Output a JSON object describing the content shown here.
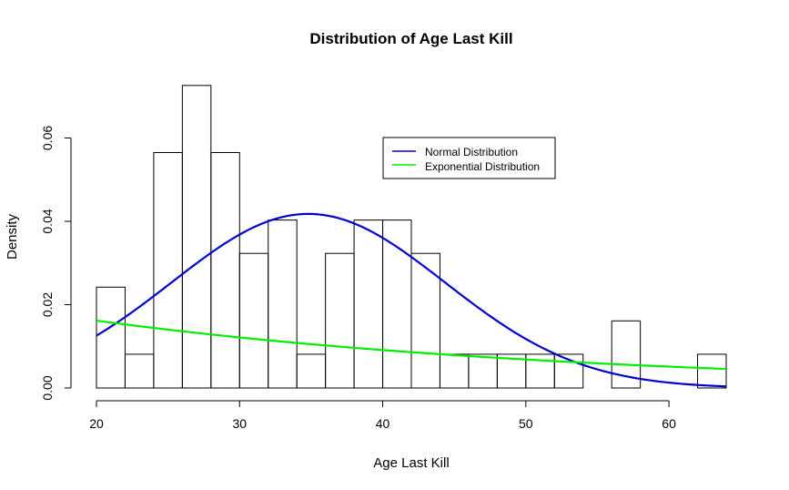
{
  "chart_data": {
    "type": "histogram",
    "title": "Distribution of Age Last Kill",
    "xlabel": "Age Last Kill",
    "ylabel": "Density",
    "xlim": [
      20,
      64
    ],
    "ylim": [
      0,
      0.073
    ],
    "x_ticks": [
      "20",
      "30",
      "40",
      "50",
      "60"
    ],
    "y_ticks": [
      "0.00",
      "0.02",
      "0.04",
      "0.06"
    ],
    "bin_width": 2,
    "bins": [
      {
        "start": 20,
        "end": 22,
        "density": 0.0242
      },
      {
        "start": 22,
        "end": 24,
        "density": 0.0081
      },
      {
        "start": 24,
        "end": 26,
        "density": 0.0565
      },
      {
        "start": 26,
        "end": 28,
        "density": 0.0726
      },
      {
        "start": 28,
        "end": 30,
        "density": 0.0565
      },
      {
        "start": 30,
        "end": 32,
        "density": 0.0323
      },
      {
        "start": 32,
        "end": 34,
        "density": 0.0403
      },
      {
        "start": 34,
        "end": 36,
        "density": 0.0081
      },
      {
        "start": 36,
        "end": 38,
        "density": 0.0323
      },
      {
        "start": 38,
        "end": 40,
        "density": 0.0403
      },
      {
        "start": 40,
        "end": 42,
        "density": 0.0403
      },
      {
        "start": 42,
        "end": 44,
        "density": 0.0323
      },
      {
        "start": 44,
        "end": 46,
        "density": 0.0081
      },
      {
        "start": 46,
        "end": 48,
        "density": 0.0081
      },
      {
        "start": 48,
        "end": 50,
        "density": 0.0081
      },
      {
        "start": 50,
        "end": 52,
        "density": 0.0081
      },
      {
        "start": 52,
        "end": 54,
        "density": 0.0081
      },
      {
        "start": 54,
        "end": 56,
        "density": 0.0
      },
      {
        "start": 56,
        "end": 58,
        "density": 0.0161
      },
      {
        "start": 58,
        "end": 60,
        "density": 0.0
      },
      {
        "start": 60,
        "end": 62,
        "density": 0.0
      },
      {
        "start": 62,
        "end": 64,
        "density": 0.0081
      }
    ],
    "curves": [
      {
        "name": "Normal Distribution",
        "color": "#0000cd",
        "distribution": "normal",
        "mean": 34.8,
        "sd": 9.55
      },
      {
        "name": "Exponential Distribution",
        "color": "#00ee00",
        "distribution": "exponential",
        "rate": 0.0287
      }
    ],
    "legend": {
      "position": "top-right",
      "entries": [
        "Normal Distribution",
        "Exponential Distribution"
      ]
    }
  }
}
